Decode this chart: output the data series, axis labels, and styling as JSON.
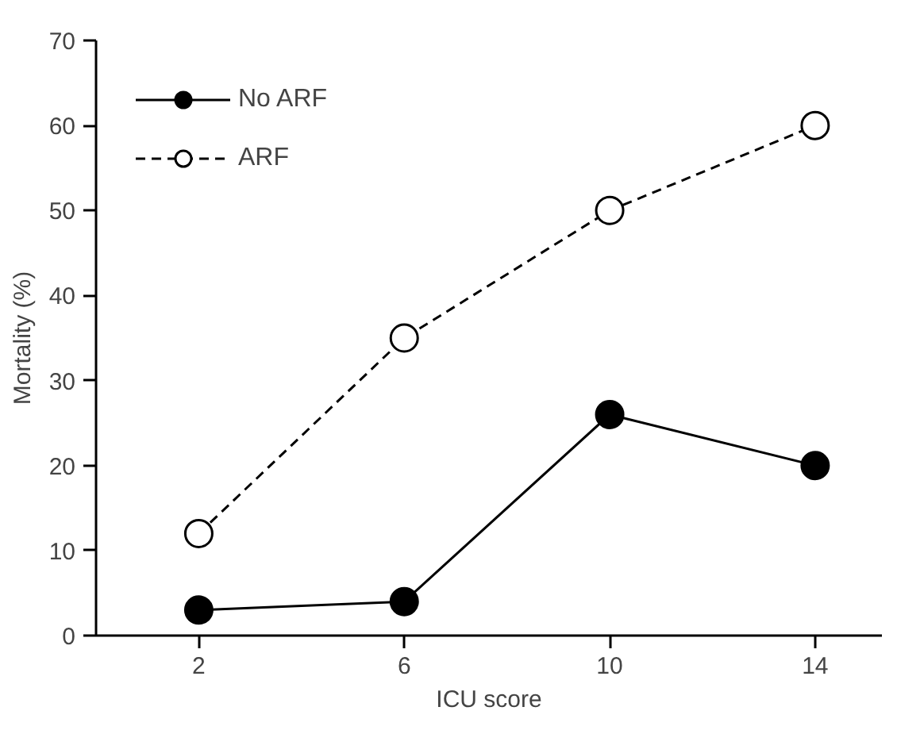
{
  "chart_data": {
    "type": "line",
    "xlabel": "ICU score",
    "ylabel": "Mortality (%)",
    "x": [
      2,
      6,
      10,
      14
    ],
    "xlim": [
      0,
      15.3
    ],
    "xticks": [
      2,
      6,
      10,
      14
    ],
    "ylim": [
      0,
      70
    ],
    "yticks": [
      0,
      10,
      20,
      30,
      40,
      50,
      60,
      70
    ],
    "series": [
      {
        "name": "No ARF",
        "color": "#000000",
        "values": [
          3,
          4,
          26,
          20
        ],
        "marker": "circle",
        "line_style": "solid"
      },
      {
        "name": "ARF",
        "color": "#000000",
        "values": [
          12,
          35,
          50,
          60
        ],
        "marker": "circle_open",
        "line_style": "dashed"
      }
    ],
    "legend": "top left",
    "grid": false
  }
}
